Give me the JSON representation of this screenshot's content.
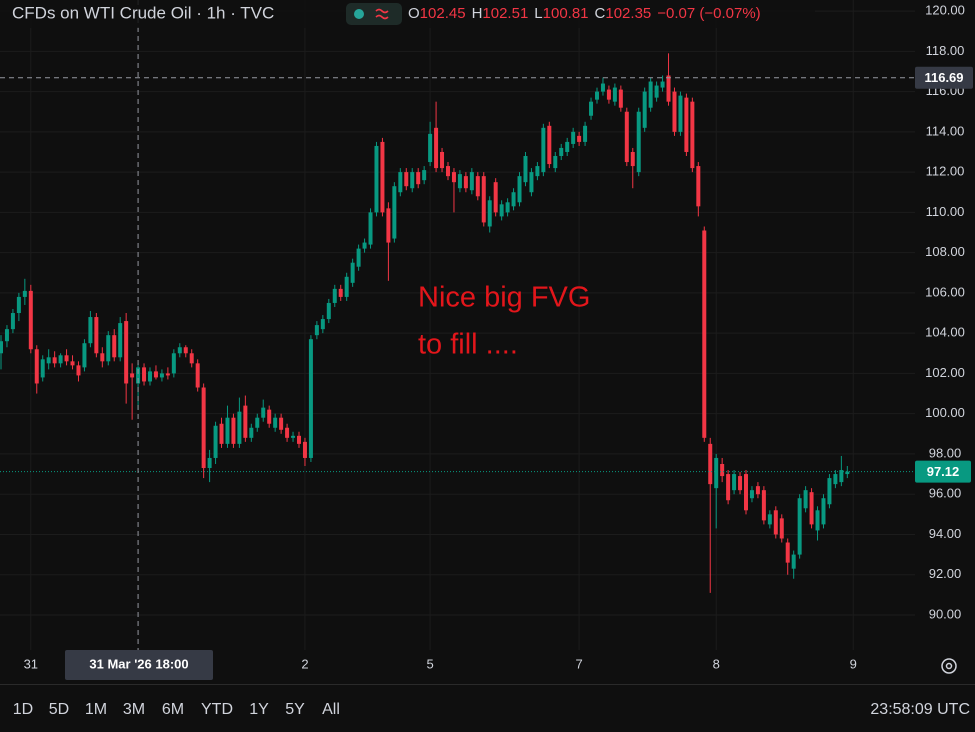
{
  "chart_data": {
    "type": "candlestick",
    "title": "CFDs on WTI Crude Oil · 1h · TVC",
    "ohlc_legend": [
      {
        "label": "O",
        "value": "102.45"
      },
      {
        "label": "H",
        "value": "102.51"
      },
      {
        "label": "L",
        "value": "100.81"
      },
      {
        "label": "C",
        "value": "102.35"
      }
    ],
    "change": "−0.07 (−0.07%)",
    "annotation": [
      "Nice big FVG",
      "to fill ...."
    ],
    "categories": [
      null,
      null,
      null,
      null,
      null,
      "31",
      null,
      null,
      null,
      null,
      null,
      null,
      null,
      null,
      null,
      null,
      null,
      null,
      null,
      null,
      null,
      null,
      null,
      null,
      null,
      null,
      null,
      null,
      null,
      null,
      null,
      null,
      null,
      null,
      null,
      null,
      null,
      null,
      null,
      null,
      null,
      null,
      null,
      null,
      null,
      null,
      null,
      null,
      null,
      null,
      null,
      "2",
      null,
      null,
      null,
      null,
      null,
      null,
      null,
      null,
      null,
      null,
      null,
      null,
      null,
      null,
      null,
      null,
      null,
      null,
      null,
      null,
      "5",
      null,
      null,
      null,
      null,
      null,
      null,
      null,
      null,
      null,
      null,
      null,
      null,
      null,
      null,
      null,
      null,
      null,
      null,
      null,
      null,
      null,
      null,
      null,
      null,
      "7",
      null,
      null,
      null,
      null,
      null,
      null,
      null,
      null,
      null,
      null,
      null,
      null,
      null,
      null,
      null,
      null,
      null,
      null,
      null,
      null,
      null,
      null,
      "8",
      null,
      null,
      null,
      null,
      null,
      null,
      null,
      null,
      null,
      null,
      null,
      null,
      null,
      null,
      null,
      null,
      null,
      null,
      null,
      null,
      null,
      null,
      "9"
    ],
    "open": [
      103.0,
      103.6,
      104.2,
      105.0,
      105.8,
      106.1,
      103.2,
      101.8,
      102.5,
      102.8,
      102.5,
      102.9,
      102.6,
      102.4,
      102.3,
      103.5,
      104.8,
      103.0,
      102.6,
      103.9,
      102.8,
      104.6,
      102.0,
      101.5,
      102.3,
      101.6,
      102.1,
      101.8,
      102.0,
      102.0,
      103.0,
      103.3,
      103.0,
      102.5,
      101.3,
      97.3,
      97.8,
      99.5,
      98.5,
      99.8,
      98.5,
      100.4,
      98.8,
      99.3,
      99.8,
      100.2,
      99.3,
      99.8,
      99.3,
      98.8,
      98.9,
      98.6,
      97.8,
      103.9,
      104.2,
      104.7,
      105.5,
      106.2,
      105.8,
      106.5,
      107.3,
      108.2,
      108.4,
      110.0,
      113.5,
      110.2,
      108.7,
      111.0,
      112.0,
      111.2,
      112.0,
      111.6,
      112.5,
      114.2,
      113.0,
      112.3,
      112.0,
      111.2,
      111.8,
      111.1,
      111.8,
      111.8,
      109.3,
      111.5,
      109.8,
      110.0,
      110.3,
      110.5,
      111.5,
      111.0,
      111.8,
      112.0,
      114.3,
      112.2,
      112.8,
      113.0,
      113.4,
      113.8,
      113.5,
      114.8,
      115.6,
      116.0,
      116.1,
      115.5,
      116.1,
      115.0,
      113.0,
      112.0,
      114.2,
      115.2,
      115.7,
      116.2,
      116.8,
      116.0,
      114.0,
      115.7,
      115.5,
      112.3,
      109.1,
      98.5,
      96.3,
      97.5,
      97.0,
      96.2,
      96.9,
      97.0,
      95.8,
      96.4,
      96.2,
      94.5,
      95.2,
      94.8,
      93.6,
      92.3,
      93.0,
      95.3,
      96.1,
      94.2,
      94.5,
      95.5,
      96.5,
      96.6,
      97.0,
      null
    ],
    "high": [
      103.9,
      104.4,
      105.2,
      106.0,
      106.7,
      106.4,
      103.4,
      102.9,
      103.2,
      103.1,
      103.0,
      103.2,
      102.9,
      102.6,
      103.7,
      105.1,
      105.0,
      103.3,
      104.1,
      104.2,
      104.8,
      105.0,
      102.5,
      102.5,
      102.5,
      102.3,
      102.4,
      102.2,
      102.3,
      103.2,
      103.5,
      103.4,
      103.2,
      102.7,
      101.5,
      98.2,
      99.6,
      99.8,
      100.4,
      100.0,
      100.8,
      100.9,
      99.5,
      100.0,
      100.7,
      100.4,
      100.0,
      100.0,
      99.5,
      99.1,
      99.1,
      98.8,
      103.9,
      104.6,
      104.9,
      105.7,
      106.4,
      106.4,
      107.0,
      107.7,
      108.4,
      108.7,
      110.2,
      113.5,
      113.7,
      110.5,
      111.5,
      112.2,
      112.2,
      112.2,
      112.2,
      112.3,
      114.5,
      115.5,
      113.2,
      112.5,
      112.2,
      112.1,
      112.0,
      112.2,
      112.0,
      112.0,
      110.8,
      111.7,
      110.6,
      110.7,
      111.2,
      112.0,
      113.0,
      112.2,
      112.5,
      114.4,
      114.5,
      113.0,
      113.4,
      113.7,
      114.2,
      114.0,
      114.5,
      115.7,
      116.2,
      116.7,
      116.3,
      116.4,
      116.3,
      115.2,
      113.2,
      115.2,
      116.2,
      116.7,
      116.5,
      116.8,
      117.9,
      116.2,
      116.0,
      115.9,
      115.7,
      112.5,
      109.3,
      98.8,
      98.0,
      97.8,
      97.2,
      97.2,
      97.1,
      97.2,
      96.4,
      96.6,
      96.4,
      95.2,
      95.4,
      95.0,
      93.8,
      93.2,
      96.0,
      96.4,
      96.3,
      95.4,
      96.0,
      97.0,
      97.2,
      97.9,
      97.4,
      null
    ],
    "low": [
      102.2,
      103.3,
      104.0,
      104.6,
      105.4,
      103.0,
      101.0,
      101.6,
      102.2,
      102.3,
      102.3,
      102.4,
      102.2,
      101.6,
      102.1,
      103.3,
      102.8,
      102.3,
      102.4,
      102.6,
      102.6,
      100.5,
      99.7,
      100.2,
      101.4,
      101.4,
      101.7,
      101.6,
      101.7,
      101.8,
      102.8,
      102.8,
      102.3,
      101.1,
      96.8,
      96.6,
      97.5,
      98.3,
      98.3,
      98.3,
      98.3,
      98.6,
      98.6,
      99.1,
      99.6,
      99.3,
      99.1,
      99.0,
      98.6,
      98.6,
      98.3,
      97.4,
      97.6,
      103.7,
      104.0,
      104.5,
      105.3,
      105.6,
      105.6,
      106.3,
      107.1,
      108.0,
      108.2,
      109.8,
      109.8,
      106.6,
      108.5,
      110.8,
      111.1,
      111.0,
      111.2,
      111.4,
      112.3,
      112.0,
      112.0,
      111.6,
      110.0,
      111.0,
      111.0,
      110.9,
      110.6,
      109.3,
      109.0,
      109.8,
      109.6,
      109.8,
      110.1,
      110.3,
      111.3,
      110.8,
      111.6,
      111.8,
      112.2,
      112.0,
      112.6,
      112.8,
      113.2,
      113.3,
      113.3,
      114.6,
      115.4,
      115.8,
      115.4,
      115.3,
      115.0,
      112.3,
      111.2,
      111.8,
      114.0,
      115.0,
      115.5,
      116.0,
      115.3,
      113.8,
      113.8,
      112.8,
      112.0,
      109.8,
      98.6,
      91.1,
      94.3,
      96.6,
      95.5,
      96.0,
      96.0,
      95.0,
      95.6,
      95.8,
      94.5,
      94.3,
      93.8,
      93.6,
      92.0,
      91.8,
      92.8,
      95.1,
      94.3,
      93.7,
      94.3,
      95.3,
      96.3,
      96.4,
      96.8,
      null
    ],
    "close": [
      103.6,
      104.2,
      105.0,
      105.8,
      106.1,
      103.2,
      101.5,
      102.7,
      102.8,
      102.5,
      102.9,
      102.6,
      102.4,
      101.9,
      103.5,
      104.8,
      103.0,
      102.6,
      103.9,
      102.8,
      104.5,
      101.5,
      101.8,
      102.3,
      101.6,
      102.1,
      101.8,
      102.0,
      101.9,
      103.0,
      103.3,
      103.0,
      102.5,
      101.3,
      97.3,
      97.8,
      99.4,
      98.5,
      99.8,
      98.5,
      100.1,
      98.8,
      99.3,
      99.8,
      100.3,
      99.5,
      99.8,
      99.2,
      98.8,
      98.9,
      98.5,
      97.8,
      103.7,
      104.4,
      104.7,
      105.5,
      106.2,
      105.8,
      106.8,
      107.5,
      108.2,
      108.5,
      110.0,
      113.3,
      110.0,
      108.5,
      111.3,
      112.0,
      111.3,
      112.0,
      111.4,
      112.1,
      113.9,
      112.2,
      112.2,
      111.8,
      111.5,
      111.9,
      111.2,
      112.0,
      110.8,
      109.5,
      110.6,
      110.0,
      110.4,
      110.5,
      111.0,
      111.8,
      112.8,
      112.0,
      112.3,
      114.2,
      112.4,
      112.8,
      113.2,
      113.5,
      114.0,
      113.5,
      114.3,
      115.5,
      116.0,
      116.4,
      115.6,
      116.2,
      115.2,
      112.5,
      112.3,
      115.0,
      116.0,
      116.5,
      116.3,
      116.5,
      115.5,
      114.0,
      115.8,
      113.0,
      112.2,
      110.3,
      98.8,
      96.5,
      97.8,
      96.9,
      95.7,
      97.0,
      96.2,
      95.2,
      96.2,
      96.0,
      94.7,
      95.0,
      94.0,
      93.8,
      92.6,
      93.0,
      95.8,
      96.2,
      94.5,
      95.2,
      95.8,
      96.8,
      97.0,
      97.2,
      97.12,
      null
    ],
    "up_color": "#089981",
    "down_color": "#f23645",
    "ylim": [
      88.26,
      120.55
    ],
    "yticks": [
      {
        "value": 90,
        "label": "90.00"
      },
      {
        "value": 92,
        "label": "92.00"
      },
      {
        "value": 94,
        "label": "94.00"
      },
      {
        "value": 96,
        "label": "96.00"
      },
      {
        "value": 98,
        "label": "98.00"
      },
      {
        "value": 100,
        "label": "100.00"
      },
      {
        "value": 102,
        "label": "102.00"
      },
      {
        "value": 104,
        "label": "104.00"
      },
      {
        "value": 106,
        "label": "106.00"
      },
      {
        "value": 108,
        "label": "108.00"
      },
      {
        "value": 110,
        "label": "110.00"
      },
      {
        "value": 112,
        "label": "112.00"
      },
      {
        "value": 114,
        "label": "114.00"
      },
      {
        "value": 116,
        "label": "116.00"
      },
      {
        "value": 118,
        "label": "118.00"
      },
      {
        "value": 120,
        "label": "120.00"
      }
    ],
    "grid": true,
    "crosshair": {
      "price": 116.69,
      "time_label": "31 Mar '26 18:00"
    },
    "last_price": 97.12,
    "ranges": [
      "1D",
      "5D",
      "1M",
      "3M",
      "6M",
      "YTD",
      "1Y",
      "5Y",
      "All"
    ],
    "clock": "23:58:09 UTC"
  }
}
